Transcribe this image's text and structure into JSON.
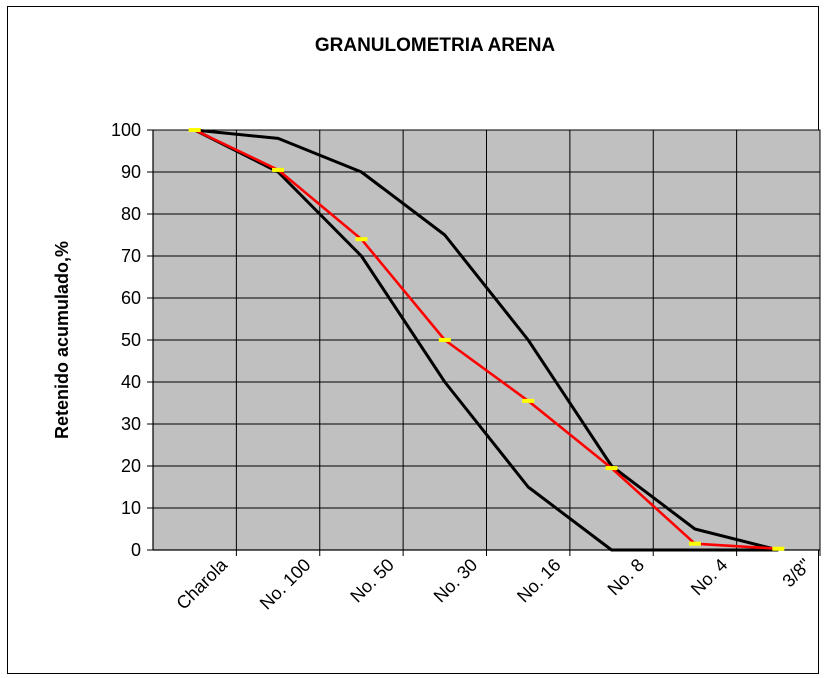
{
  "chart_data": {
    "type": "line",
    "title": "GRANULOMETRIA ARENA",
    "xlabel": "",
    "ylabel": "Retenido acumulado,%",
    "categories": [
      "Charola",
      "No. 100",
      "No. 50",
      "No. 30",
      "No. 16",
      "No. 8",
      "No. 4",
      "3/8\""
    ],
    "y_ticks": [
      0,
      10,
      20,
      30,
      40,
      50,
      60,
      70,
      80,
      90,
      100
    ],
    "ylim": [
      0,
      100
    ],
    "grid": true,
    "plot_background": "#c0c0c0",
    "series": [
      {
        "color": "#000000",
        "points_x": [
          0.5,
          1.5,
          2.5,
          3.5,
          4.5,
          5.5,
          6.5,
          7.5
        ],
        "values": [
          100,
          98,
          90,
          75,
          50,
          20,
          5,
          0
        ]
      },
      {
        "color": "#000000",
        "points_x": [
          0.5,
          1.5,
          2.5,
          3.5,
          4.5,
          5.5,
          6.5,
          7.5
        ],
        "values": [
          100,
          90,
          70,
          40,
          15,
          0,
          0,
          0
        ]
      },
      {
        "color": "#ff0000",
        "marker_color": "#ffff00",
        "points_x": [
          0.5,
          1.5,
          2.5,
          3.5,
          4.5,
          5.5,
          6.5,
          7.5
        ],
        "values": [
          100,
          90.5,
          74,
          50,
          35.5,
          19.5,
          1.5,
          0.3
        ]
      }
    ]
  }
}
